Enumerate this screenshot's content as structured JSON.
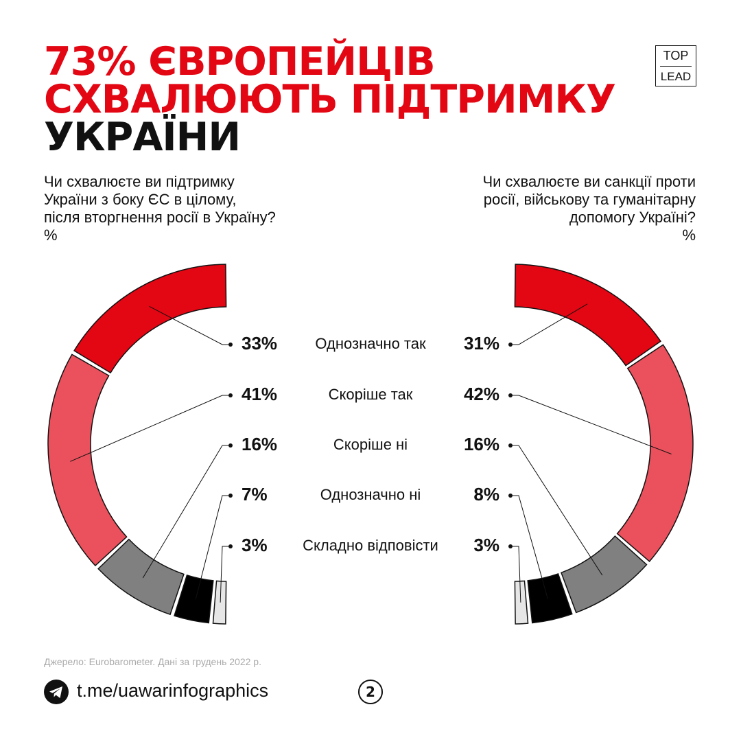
{
  "title": [
    "73% ЄВРОПЕЙЦІВ",
    "СХВАЛЮЮТЬ ПІДТРИМКУ",
    "УКРАЇНИ"
  ],
  "logo": [
    "TOP",
    "LEAD"
  ],
  "chart_data": {
    "type": "half-donut",
    "categories": [
      "Однозначно так",
      "Скоріше так",
      "Скоріше ні",
      "Однозначно ні",
      "Складно відповісти"
    ],
    "colors": [
      "#e30613",
      "#ea515c",
      "#808080",
      "#000000",
      "#e6e6e6"
    ],
    "series": [
      {
        "name": "Чи схвалюєте ви підтримку\nУкраїни з боку ЄС в цілому,\nпісля вторгнення росії в Україну?\n%",
        "values": [
          33,
          41,
          16,
          7,
          3
        ],
        "value_labels": [
          "33%",
          "41%",
          "16%",
          "7%",
          "3%"
        ]
      },
      {
        "name": "Чи схвалюєте ви санкції проти\nросії, військову та гуманітарну\nдопомогу Україні?\n%",
        "values": [
          31,
          42,
          16,
          8,
          3
        ],
        "value_labels": [
          "31%",
          "42%",
          "16%",
          "8%",
          "3%"
        ]
      }
    ]
  },
  "footer": {
    "source": "Джерело: Eurobarometer. Дані за грудень 2022 р.",
    "link": "t.me/uawarinfographics",
    "page": "2"
  }
}
